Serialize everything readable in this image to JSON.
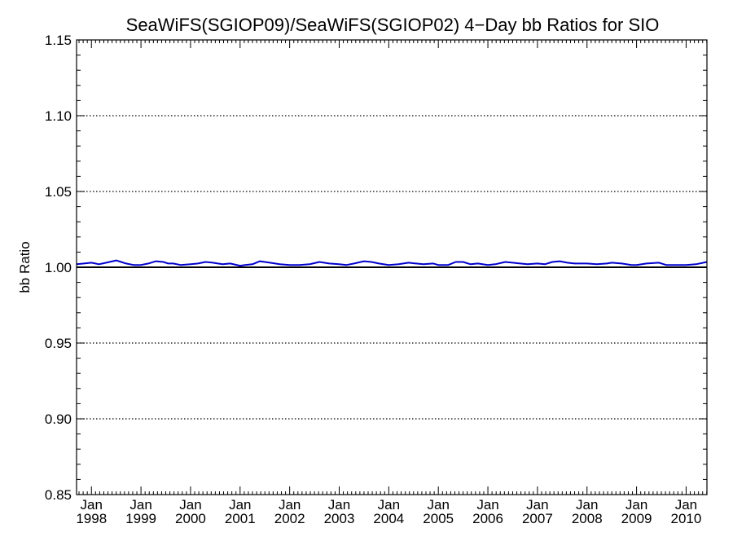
{
  "chart_data": {
    "type": "line",
    "title": "SeaWiFS(SGIOP09)/SeaWiFS(SGIOP02) 4−Day bb Ratios for SIO",
    "xlabel": "",
    "ylabel": "bb Ratio",
    "ylim": [
      0.85,
      1.15
    ],
    "yticks": [
      "0.85",
      "0.90",
      "0.95",
      "1.00",
      "1.05",
      "1.10",
      "1.15"
    ],
    "xlim": [
      1997.7,
      2010.42
    ],
    "xticks": [
      {
        "month": "Jan",
        "year": "1998",
        "x": 1998
      },
      {
        "month": "Jan",
        "year": "1999",
        "x": 1999
      },
      {
        "month": "Jan",
        "year": "2000",
        "x": 2000
      },
      {
        "month": "Jan",
        "year": "2001",
        "x": 2001
      },
      {
        "month": "Jan",
        "year": "2002",
        "x": 2002
      },
      {
        "month": "Jan",
        "year": "2003",
        "x": 2003
      },
      {
        "month": "Jan",
        "year": "2004",
        "x": 2004
      },
      {
        "month": "Jan",
        "year": "2005",
        "x": 2005
      },
      {
        "month": "Jan",
        "year": "2006",
        "x": 2006
      },
      {
        "month": "Jan",
        "year": "2007",
        "x": 2007
      },
      {
        "month": "Jan",
        "year": "2008",
        "x": 2008
      },
      {
        "month": "Jan",
        "year": "2009",
        "x": 2009
      },
      {
        "month": "Jan",
        "year": "2010",
        "x": 2010
      }
    ],
    "grid_y": [
      0.9,
      0.95,
      1.05,
      1.1
    ],
    "reference_line": 1.0,
    "series": [
      {
        "color": "#0000cc",
        "x": [
          1997.7,
          1997.85,
          1998.0,
          1998.15,
          1998.3,
          1998.5,
          1998.6,
          1998.7,
          1998.85,
          1999.0,
          1999.15,
          1999.3,
          1999.45,
          1999.55,
          1999.65,
          1999.8,
          2000.0,
          2000.15,
          2000.3,
          2000.45,
          2000.55,
          2000.65,
          2000.8,
          2001.0,
          2001.1,
          2001.25,
          2001.4,
          2001.5,
          2001.6,
          2001.8,
          2002.0,
          2002.2,
          2002.4,
          2002.6,
          2002.8,
          2003.0,
          2003.15,
          2003.3,
          2003.5,
          2003.65,
          2003.8,
          2004.0,
          2004.2,
          2004.4,
          2004.55,
          2004.7,
          2004.9,
          2005.0,
          2005.2,
          2005.35,
          2005.5,
          2005.65,
          2005.8,
          2006.0,
          2006.15,
          2006.35,
          2006.5,
          2006.65,
          2006.8,
          2007.0,
          2007.15,
          2007.3,
          2007.45,
          2007.6,
          2007.75,
          2007.9,
          2008.0,
          2008.2,
          2008.4,
          2008.5,
          2008.7,
          2008.9,
          2009.0,
          2009.2,
          2009.45,
          2009.6,
          2009.8,
          2010.0,
          2010.2,
          2010.42
        ],
        "y": [
          1.002,
          1.0025,
          1.003,
          1.002,
          1.003,
          1.0045,
          1.0035,
          1.0025,
          1.0015,
          1.0015,
          1.0025,
          1.004,
          1.0035,
          1.0025,
          1.0025,
          1.0015,
          1.002,
          1.0025,
          1.0035,
          1.003,
          1.0025,
          1.002,
          1.0025,
          1.001,
          1.0015,
          1.002,
          1.004,
          1.0035,
          1.003,
          1.002,
          1.0015,
          1.0015,
          1.002,
          1.0035,
          1.0025,
          1.002,
          1.0015,
          1.0025,
          1.004,
          1.0035,
          1.0025,
          1.0015,
          1.002,
          1.003,
          1.0025,
          1.002,
          1.0025,
          1.0015,
          1.0015,
          1.0035,
          1.0035,
          1.002,
          1.0025,
          1.0015,
          1.002,
          1.0035,
          1.003,
          1.0025,
          1.002,
          1.0025,
          1.002,
          1.0035,
          1.004,
          1.003,
          1.0025,
          1.0025,
          1.0025,
          1.002,
          1.0025,
          1.003,
          1.0025,
          1.0015,
          1.0015,
          1.0025,
          1.003,
          1.0015,
          1.0015,
          1.0015,
          1.002,
          1.0035
        ]
      }
    ]
  }
}
